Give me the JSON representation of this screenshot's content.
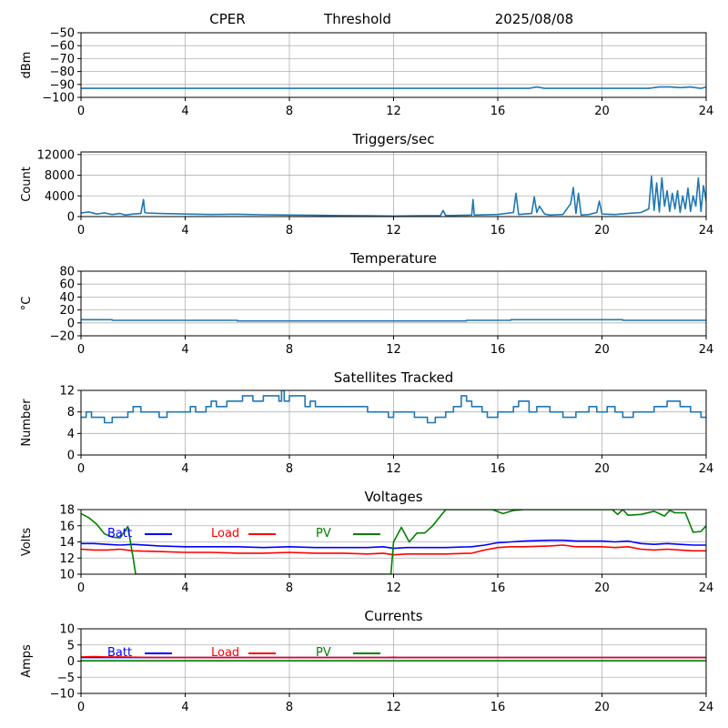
{
  "header": {
    "station": "CPER",
    "mode": "Threshold",
    "date": "2025/08/08"
  },
  "chart_data": [
    {
      "id": "signal",
      "type": "line",
      "title": "",
      "ylabel": "dBm",
      "ylim": [
        -100,
        -50
      ],
      "yticks": [
        -100,
        -90,
        -80,
        -70,
        -60,
        -50
      ],
      "xlim": [
        0,
        24
      ],
      "xticks": [
        0,
        4,
        8,
        12,
        16,
        20,
        24
      ],
      "grid": true,
      "series": [
        {
          "color": "#1f77b4",
          "x": [
            0,
            4,
            8,
            12,
            14,
            16,
            17.2,
            17.5,
            17.8,
            18,
            19,
            20,
            21,
            21.8,
            22.2,
            22.6,
            23,
            23.4,
            23.8,
            24
          ],
          "y": [
            -93,
            -93,
            -93,
            -93,
            -93,
            -93,
            -93,
            -92,
            -93,
            -93,
            -93,
            -93,
            -93,
            -93,
            -92,
            -92,
            -92.5,
            -92,
            -93,
            -92
          ]
        }
      ]
    },
    {
      "id": "triggers",
      "type": "line",
      "title": "Triggers/sec",
      "ylabel": "Count",
      "ylim": [
        0,
        12500
      ],
      "yticks": [
        0,
        4000,
        8000,
        12000
      ],
      "xlim": [
        0,
        24
      ],
      "xticks": [
        0,
        4,
        8,
        12,
        16,
        20,
        24
      ],
      "grid": true,
      "series": [
        {
          "color": "#1f77b4",
          "x": [
            0,
            0.3,
            0.6,
            0.9,
            1.2,
            1.5,
            1.7,
            2.0,
            2.3,
            2.4,
            2.45,
            2.5,
            3.0,
            4.0,
            5.0,
            6.0,
            7.0,
            8.0,
            9.0,
            10.0,
            11.0,
            12.0,
            13.0,
            13.8,
            13.9,
            14.0,
            15.0,
            15.05,
            15.1,
            16.0,
            16.6,
            16.7,
            16.8,
            17.0,
            17.3,
            17.4,
            17.5,
            17.6,
            17.8,
            18.0,
            18.5,
            18.8,
            18.9,
            19.0,
            19.1,
            19.2,
            19.5,
            19.8,
            19.9,
            20.0,
            20.5,
            21.0,
            21.5,
            21.8,
            21.9,
            22.0,
            22.1,
            22.2,
            22.3,
            22.4,
            22.5,
            22.6,
            22.7,
            22.8,
            22.9,
            23.0,
            23.1,
            23.2,
            23.3,
            23.4,
            23.5,
            23.6,
            23.7,
            23.8,
            23.9,
            24.0
          ],
          "y": [
            700,
            900,
            500,
            700,
            400,
            600,
            300,
            500,
            600,
            3300,
            800,
            700,
            600,
            500,
            400,
            450,
            350,
            300,
            250,
            200,
            150,
            100,
            150,
            200,
            1200,
            200,
            300,
            3300,
            300,
            400,
            800,
            4500,
            400,
            500,
            600,
            3800,
            800,
            2000,
            500,
            300,
            400,
            2500,
            5600,
            600,
            4500,
            300,
            400,
            800,
            3000,
            500,
            400,
            600,
            800,
            1500,
            7800,
            1200,
            6500,
            900,
            7500,
            2000,
            5000,
            1000,
            4500,
            1500,
            5000,
            800,
            4000,
            1500,
            5500,
            1000,
            4000,
            2000,
            7500,
            1000,
            6000,
            3000
          ]
        }
      ]
    },
    {
      "id": "temperature",
      "type": "line",
      "title": "Temperature",
      "ylabel": "°C",
      "ylim": [
        -20,
        80
      ],
      "yticks": [
        -20,
        0,
        20,
        40,
        60,
        80
      ],
      "xlim": [
        0,
        24
      ],
      "xticks": [
        0,
        4,
        8,
        12,
        16,
        20,
        24
      ],
      "grid": true,
      "series": [
        {
          "color": "#1f77b4",
          "x": [
            0,
            1.2,
            1.2,
            6.0,
            6.0,
            14.8,
            14.8,
            16.5,
            16.5,
            20.8,
            20.8,
            24
          ],
          "y": [
            5,
            5,
            4,
            4,
            3,
            3,
            4,
            4,
            5,
            5,
            4,
            4
          ]
        }
      ]
    },
    {
      "id": "satellites",
      "type": "line",
      "title": "Satellites Tracked",
      "ylabel": "Number",
      "ylim": [
        0,
        12
      ],
      "yticks": [
        0,
        4,
        8,
        12
      ],
      "xlim": [
        0,
        24
      ],
      "xticks": [
        0,
        4,
        8,
        12,
        16,
        20,
        24
      ],
      "grid": true,
      "series": [
        {
          "color": "#1f77b4",
          "step": true,
          "x": [
            0,
            0.2,
            0.4,
            0.7,
            0.9,
            1.2,
            1.8,
            2.0,
            2.3,
            2.8,
            3.0,
            3.3,
            3.6,
            4.2,
            4.4,
            4.8,
            5.0,
            5.2,
            5.6,
            6.0,
            6.2,
            6.6,
            7.0,
            7.6,
            7.7,
            7.8,
            8.0,
            8.6,
            8.8,
            9.0,
            9.2,
            10.0,
            10.8,
            11.0,
            11.8,
            12.0,
            12.4,
            12.8,
            13.0,
            13.3,
            13.6,
            13.8,
            14.0,
            14.3,
            14.6,
            14.8,
            15.0,
            15.4,
            15.6,
            16.0,
            16.2,
            16.6,
            16.8,
            17.2,
            17.5,
            18.0,
            18.5,
            19.0,
            19.5,
            19.8,
            20.2,
            20.5,
            20.8,
            21.2,
            21.6,
            22.0,
            22.5,
            23.0,
            23.4,
            23.8,
            24
          ],
          "y": [
            7,
            8,
            7,
            7,
            6,
            7,
            8,
            9,
            8,
            8,
            7,
            8,
            8,
            9,
            8,
            9,
            10,
            9,
            10,
            10,
            11,
            10,
            11,
            10,
            12,
            10,
            11,
            9,
            10,
            9,
            9,
            9,
            9,
            8,
            7,
            8,
            8,
            7,
            7,
            6,
            7,
            7,
            8,
            9,
            11,
            10,
            9,
            8,
            7,
            8,
            8,
            9,
            10,
            8,
            9,
            8,
            7,
            8,
            9,
            8,
            9,
            8,
            7,
            8,
            8,
            9,
            10,
            9,
            8,
            7,
            7
          ]
        }
      ]
    },
    {
      "id": "voltages",
      "type": "line",
      "title": "Voltages",
      "ylabel": "Volts",
      "ylim": [
        10,
        18
      ],
      "yticks": [
        10,
        12,
        14,
        16,
        18
      ],
      "xlim": [
        0,
        24
      ],
      "xticks": [
        0,
        4,
        8,
        12,
        16,
        20,
        24
      ],
      "grid": true,
      "legend": "inline-top",
      "series": [
        {
          "name": "Batt",
          "color": "#0000ff",
          "x": [
            0,
            0.5,
            1.0,
            1.5,
            2.0,
            3.0,
            4.0,
            5.0,
            6.0,
            7.0,
            8.0,
            9.0,
            10.0,
            11.0,
            11.6,
            12.0,
            12.5,
            13.0,
            14.0,
            15.0,
            15.5,
            16.0,
            16.5,
            17.0,
            18.0,
            18.5,
            19.0,
            20.0,
            20.5,
            21.0,
            21.5,
            22.0,
            22.5,
            23.0,
            23.5,
            24
          ],
          "y": [
            13.8,
            13.8,
            13.7,
            13.6,
            13.7,
            13.5,
            13.4,
            13.4,
            13.4,
            13.3,
            13.4,
            13.3,
            13.3,
            13.3,
            13.4,
            13.2,
            13.3,
            13.3,
            13.3,
            13.4,
            13.6,
            13.9,
            14.0,
            14.1,
            14.2,
            14.2,
            14.1,
            14.1,
            14.0,
            14.1,
            13.8,
            13.7,
            13.8,
            13.7,
            13.6,
            13.6
          ]
        },
        {
          "name": "Load",
          "color": "#ff0000",
          "x": [
            0,
            0.5,
            1.0,
            1.5,
            2.0,
            3.0,
            4.0,
            5.0,
            6.0,
            7.0,
            8.0,
            9.0,
            10.0,
            11.0,
            11.6,
            12.0,
            12.5,
            13.0,
            14.0,
            15.0,
            15.5,
            16.0,
            16.5,
            17.0,
            18.0,
            18.5,
            19.0,
            20.0,
            20.5,
            21.0,
            21.5,
            22.0,
            22.5,
            23.0,
            23.5,
            24
          ],
          "y": [
            13.1,
            13.0,
            13.0,
            13.1,
            12.9,
            12.8,
            12.7,
            12.7,
            12.6,
            12.6,
            12.7,
            12.6,
            12.6,
            12.5,
            12.6,
            12.4,
            12.5,
            12.5,
            12.5,
            12.6,
            13.0,
            13.3,
            13.4,
            13.4,
            13.5,
            13.6,
            13.4,
            13.4,
            13.3,
            13.4,
            13.1,
            13.0,
            13.1,
            13.0,
            12.9,
            12.9
          ]
        },
        {
          "name": "PV",
          "color": "#008000",
          "x": [
            0,
            0.3,
            0.6,
            0.9,
            1.2,
            1.5,
            1.8,
            2.0,
            2.1,
            11.9,
            12.0,
            12.3,
            12.6,
            12.9,
            13.2,
            13.5,
            13.8,
            14.0,
            15.8,
            16.2,
            16.6,
            17.0,
            20.4,
            20.6,
            20.8,
            21.0,
            21.5,
            22.0,
            22.4,
            22.6,
            22.8,
            23.2,
            23.5,
            23.8,
            24
          ],
          "y": [
            17.5,
            17.0,
            16.2,
            15.0,
            14.6,
            14.5,
            15.9,
            12.0,
            10.0,
            10.0,
            14.0,
            15.8,
            14.0,
            15.1,
            15.1,
            16.0,
            17.2,
            18.0,
            18.0,
            17.5,
            17.9,
            18.0,
            18.0,
            17.4,
            18.0,
            17.3,
            17.4,
            17.8,
            17.2,
            17.9,
            17.6,
            17.6,
            15.2,
            15.3,
            16.0
          ]
        }
      ]
    },
    {
      "id": "currents",
      "type": "line",
      "title": "Currents",
      "ylabel": "Amps",
      "ylim": [
        -10,
        10
      ],
      "yticks": [
        -10,
        -5,
        0,
        5,
        10
      ],
      "xlim": [
        0,
        24
      ],
      "xticks": [
        0,
        4,
        8,
        12,
        16,
        20,
        24
      ],
      "grid": true,
      "legend": "inline-top",
      "series": [
        {
          "name": "Batt",
          "color": "#0000ff",
          "x": [
            0,
            24
          ],
          "y": [
            1.1,
            1.1
          ]
        },
        {
          "name": "Load",
          "color": "#ff0000",
          "x": [
            0,
            0.5,
            1.0,
            1.5,
            2.0,
            3.0,
            6.0,
            10.0,
            11.8,
            12.0,
            12.2,
            14.0,
            18.0,
            22.0,
            24
          ],
          "y": [
            1.3,
            1.4,
            1.3,
            1.3,
            1.2,
            1.1,
            1.1,
            1.1,
            1.1,
            1.2,
            1.1,
            1.1,
            1.1,
            1.1,
            1.1
          ]
        },
        {
          "name": "PV",
          "color": "#008000",
          "x": [
            0,
            24
          ],
          "y": [
            0.1,
            0.1
          ]
        }
      ]
    }
  ]
}
